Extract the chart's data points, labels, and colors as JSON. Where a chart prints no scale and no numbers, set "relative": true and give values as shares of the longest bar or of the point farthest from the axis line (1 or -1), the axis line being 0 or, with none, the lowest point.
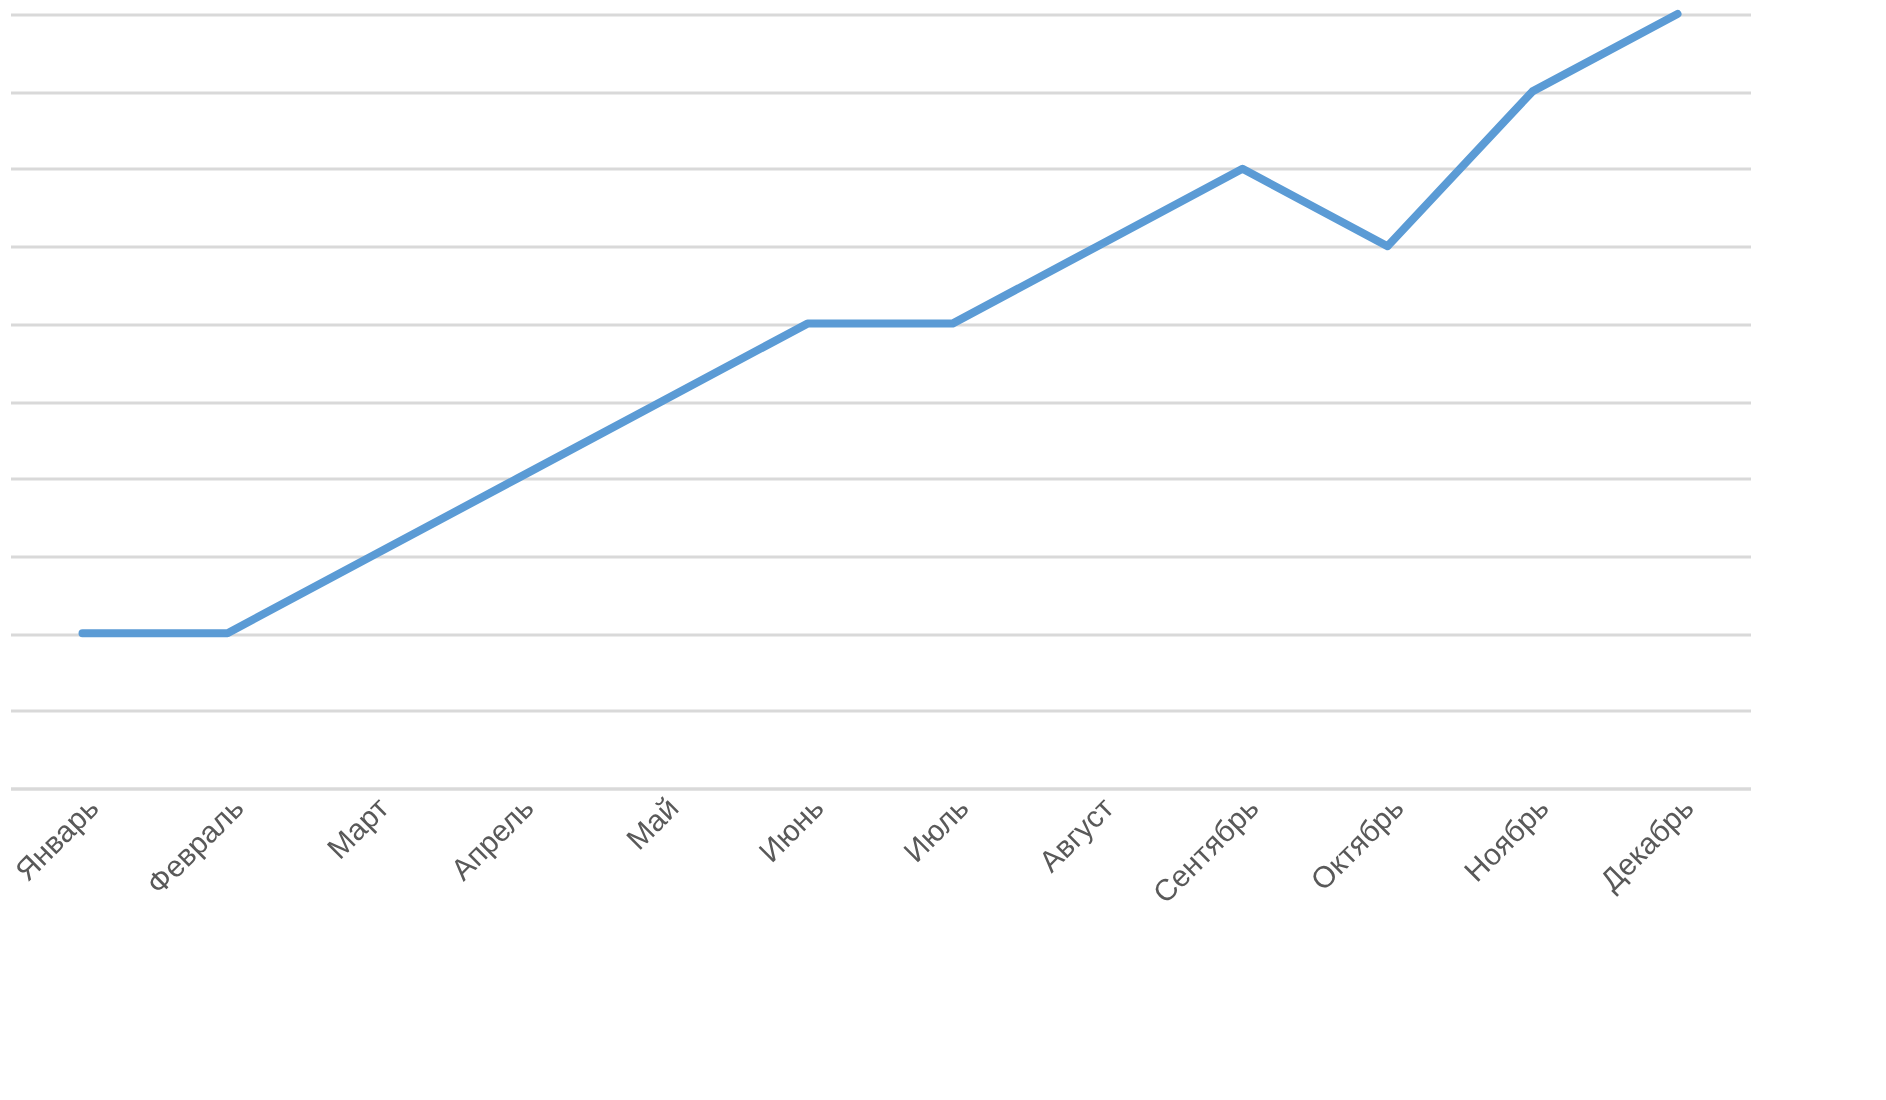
{
  "chart_data": {
    "type": "line",
    "relative": true,
    "grid": "y",
    "categories": [
      "Январь",
      "Февраль",
      "Март",
      "Апрель",
      "Май",
      "Июнь",
      "Июль",
      "Август",
      "Сентябрь",
      "Октябрь",
      "Ноябрь",
      "Декабрь"
    ],
    "series": [
      {
        "color": "#5b9bd5",
        "values": [
          0.2,
          0.2,
          0.3,
          0.4,
          0.5,
          0.6,
          0.6,
          0.7,
          0.8,
          0.7,
          0.9,
          1.0
        ]
      }
    ],
    "marker": "none",
    "line_style": "solid"
  }
}
